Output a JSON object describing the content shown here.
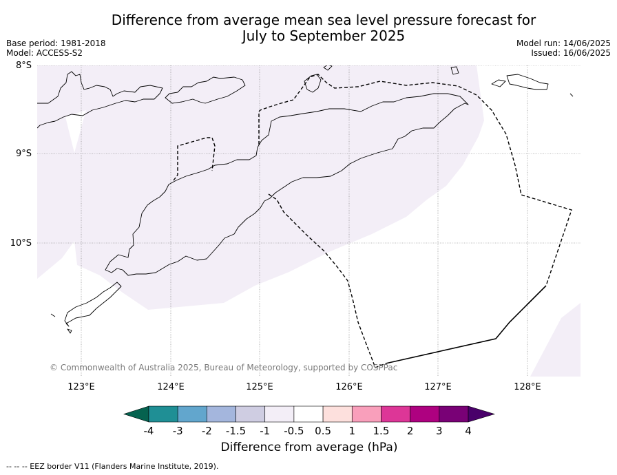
{
  "title_line1": "Difference from average mean sea level pressure forecast for",
  "title_line2": "July to September 2025",
  "meta_left": {
    "line1": "Base period: 1981-2018",
    "line2": "Model: ACCESS-S2"
  },
  "meta_right": {
    "line1": "Model run: 14/06/2025",
    "line2": "Issued: 16/06/2025"
  },
  "map": {
    "lon_range": [
      122.5,
      128.6
    ],
    "lat_range": [
      -11.5,
      -8.0
    ],
    "lon_ticks": [
      {
        "value": 123,
        "label": "123°E"
      },
      {
        "value": 124,
        "label": "124°E"
      },
      {
        "value": 125,
        "label": "125°E"
      },
      {
        "value": 126,
        "label": "126°E"
      },
      {
        "value": 127,
        "label": "127°E"
      },
      {
        "value": 128,
        "label": "128°E"
      }
    ],
    "lat_ticks": [
      {
        "value": -8,
        "label": "8°S"
      },
      {
        "value": -9,
        "label": "9°S"
      },
      {
        "value": -10,
        "label": "10°S"
      }
    ],
    "gridlines": true,
    "copyright": "© Commonwealth of Australia 2025, Bureau of Meteorology, supported by COSPPac",
    "shaded_class_color": "#f3eef7"
  },
  "colorbar": {
    "ticks": [
      "-4",
      "-3",
      "-2",
      "-1.5",
      "-1",
      "-0.5",
      "0.5",
      "1",
      "1.5",
      "2",
      "3",
      "4"
    ],
    "colors": [
      "#05624f",
      "#1f8f95",
      "#62a6cd",
      "#a4b6dd",
      "#cfcde2",
      "#f3eef7",
      "#ffffff",
      "#fde0dd",
      "#f99fbb",
      "#dd3697",
      "#ae0180",
      "#790176",
      "#49006a"
    ],
    "label": "Difference from average (hPa)"
  },
  "footnote": "--  --  -- EEZ border V11 (Flanders Marine Institute, 2019)."
}
